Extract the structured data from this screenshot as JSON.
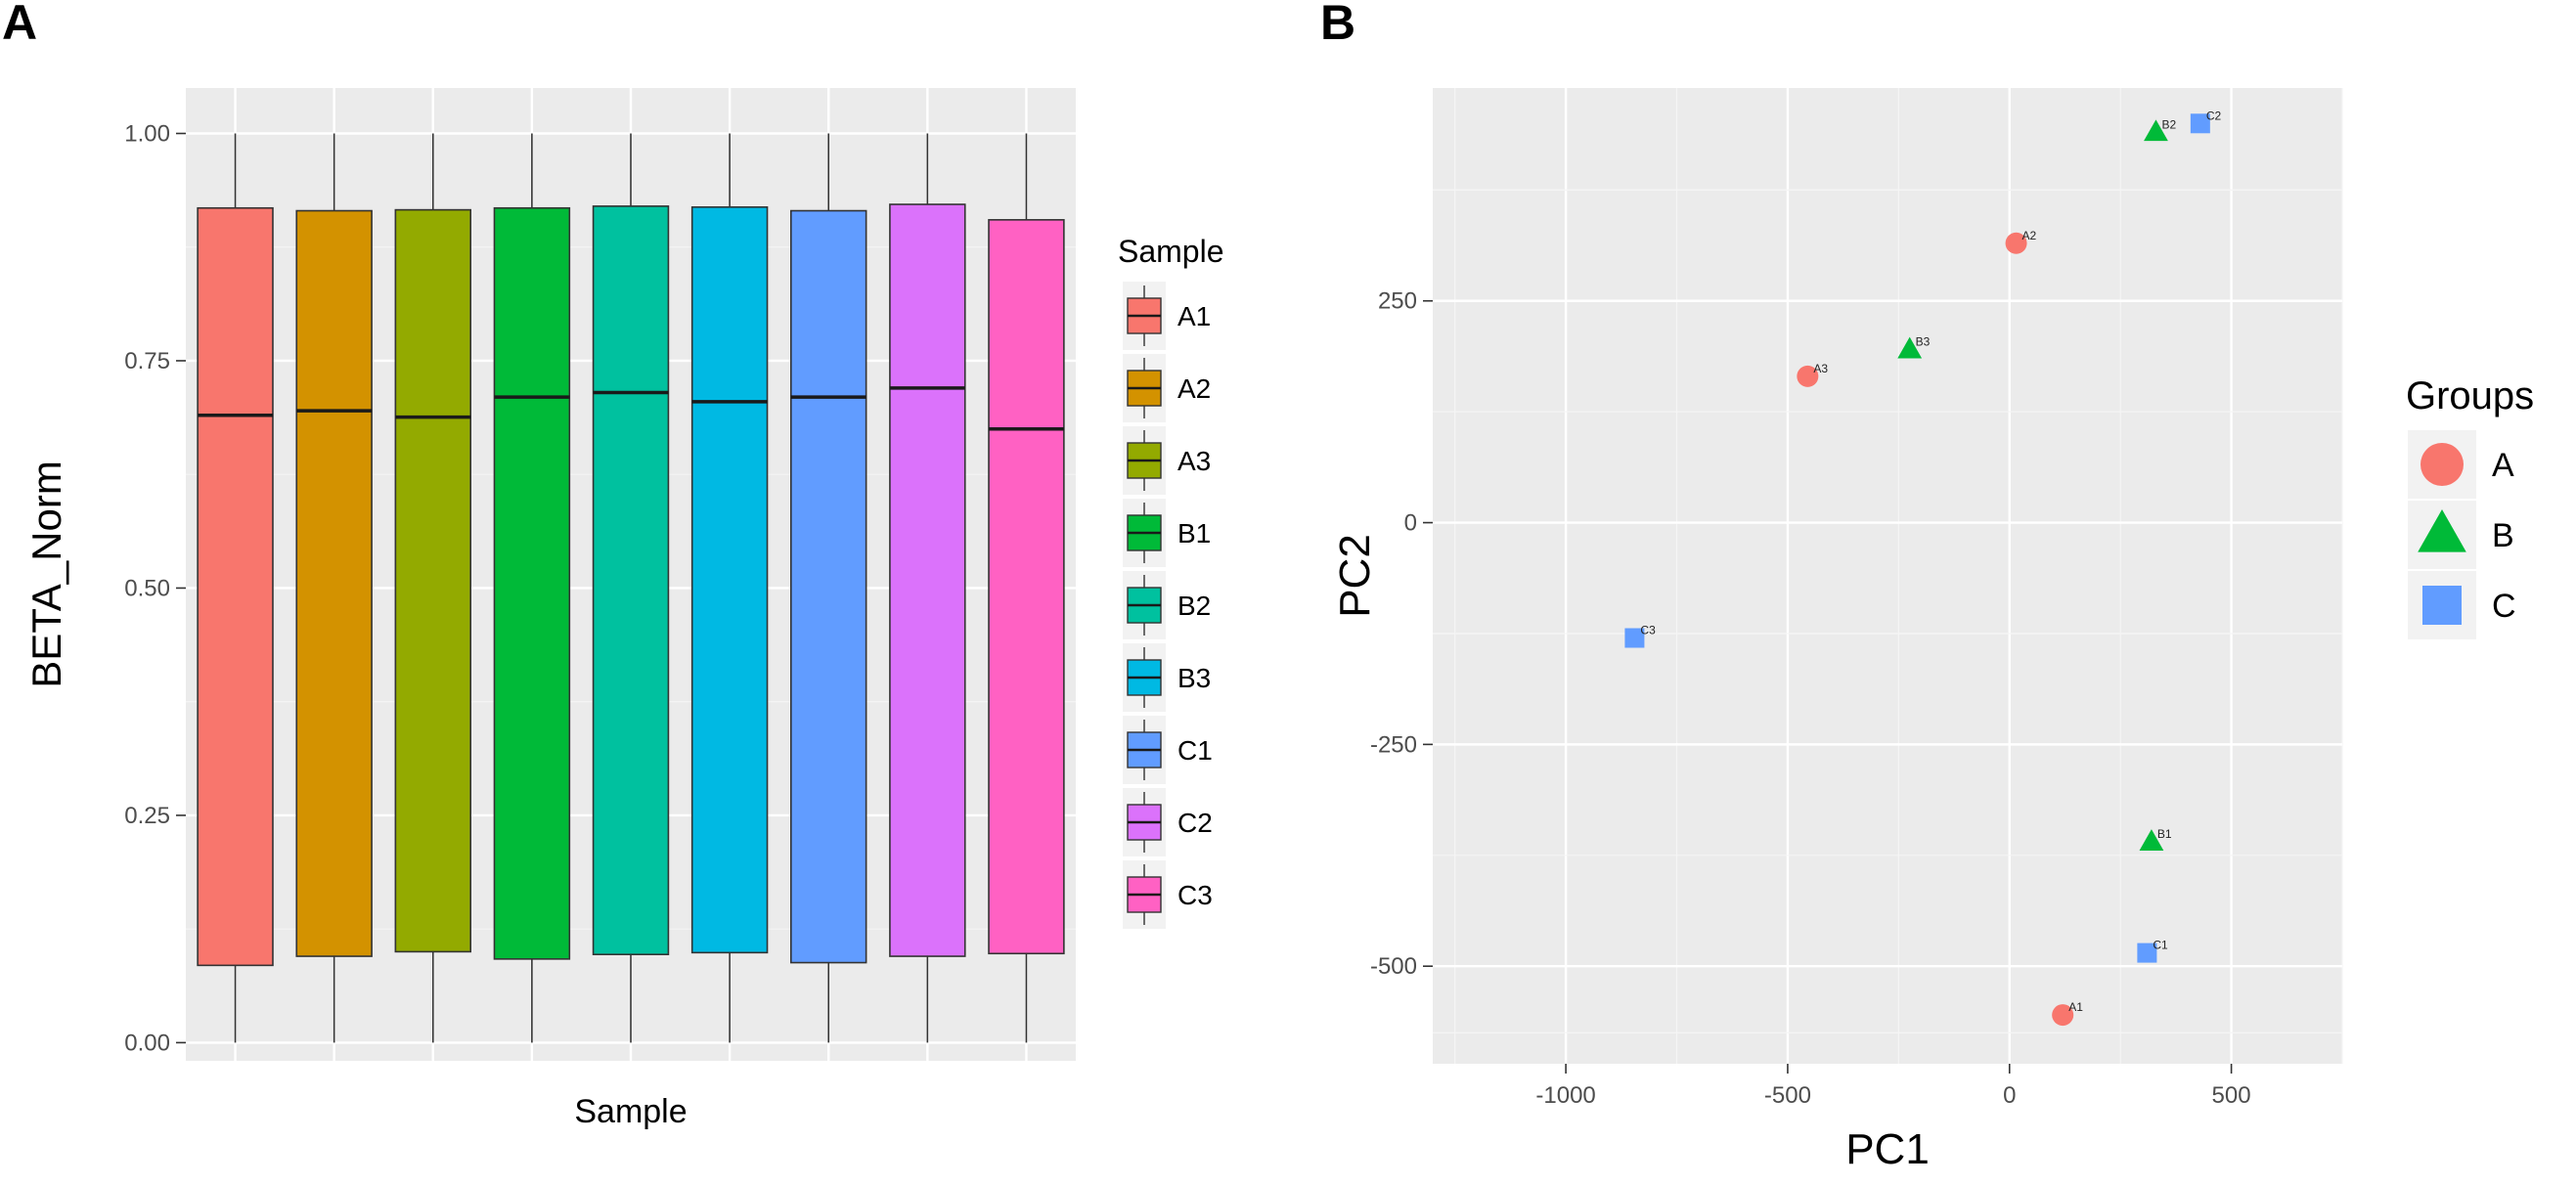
{
  "panels": {
    "a_label": "A",
    "b_label": "B"
  },
  "chart_data": [
    {
      "type": "box",
      "title": "",
      "xlabel": "Sample",
      "ylabel": "BETA_Norm",
      "ylim": [
        -0.02,
        1.05
      ],
      "yticks": [
        0.0,
        0.25,
        0.5,
        0.75,
        1.0
      ],
      "ytick_labels": [
        "0.00",
        "0.25",
        "0.50",
        "0.75",
        "1.00"
      ],
      "legend_title": "Sample",
      "legend_position": "right",
      "boxes": [
        {
          "name": "A1",
          "color": "#F8766D",
          "min": 0.0,
          "q1": 0.085,
          "median": 0.69,
          "q3": 0.918,
          "max": 1.0
        },
        {
          "name": "A2",
          "color": "#D39200",
          "min": 0.0,
          "q1": 0.095,
          "median": 0.695,
          "q3": 0.915,
          "max": 1.0
        },
        {
          "name": "A3",
          "color": "#93AA00",
          "min": 0.0,
          "q1": 0.1,
          "median": 0.688,
          "q3": 0.916,
          "max": 1.0
        },
        {
          "name": "B1",
          "color": "#00BA38",
          "min": 0.0,
          "q1": 0.092,
          "median": 0.71,
          "q3": 0.918,
          "max": 1.0
        },
        {
          "name": "B2",
          "color": "#00C19F",
          "min": 0.0,
          "q1": 0.097,
          "median": 0.715,
          "q3": 0.92,
          "max": 1.0
        },
        {
          "name": "B3",
          "color": "#00B9E3",
          "min": 0.0,
          "q1": 0.099,
          "median": 0.705,
          "q3": 0.919,
          "max": 1.0
        },
        {
          "name": "C1",
          "color": "#619CFF",
          "min": 0.0,
          "q1": 0.088,
          "median": 0.71,
          "q3": 0.915,
          "max": 1.0
        },
        {
          "name": "C2",
          "color": "#DB72FB",
          "min": 0.0,
          "q1": 0.095,
          "median": 0.72,
          "q3": 0.922,
          "max": 1.0
        },
        {
          "name": "C3",
          "color": "#FF61C3",
          "min": 0.0,
          "q1": 0.098,
          "median": 0.675,
          "q3": 0.905,
          "max": 1.0
        }
      ]
    },
    {
      "type": "scatter",
      "title": "",
      "xlabel": "PC1",
      "ylabel": "PC2",
      "xlim": [
        -1300,
        750
      ],
      "ylim": [
        -610,
        490
      ],
      "xticks": [
        -1000,
        -500,
        0,
        500
      ],
      "xtick_labels": [
        "-1000",
        "-500",
        "0",
        "500"
      ],
      "yticks": [
        -500,
        -250,
        0,
        250
      ],
      "ytick_labels": [
        "-500",
        "-250",
        "0",
        "250"
      ],
      "legend_title": "Groups",
      "legend_position": "right",
      "groups": [
        {
          "name": "A",
          "shape": "circle",
          "color": "#F8766D"
        },
        {
          "name": "B",
          "shape": "triangle",
          "color": "#00BA38"
        },
        {
          "name": "C",
          "shape": "square",
          "color": "#619CFF"
        }
      ],
      "points": [
        {
          "label": "A1",
          "group": "A",
          "x": 120,
          "y": -555
        },
        {
          "label": "A2",
          "group": "A",
          "x": 15,
          "y": 315
        },
        {
          "label": "A3",
          "group": "A",
          "x": -455,
          "y": 165
        },
        {
          "label": "B1",
          "group": "B",
          "x": 320,
          "y": -360
        },
        {
          "label": "B2",
          "group": "B",
          "x": 330,
          "y": 440
        },
        {
          "label": "B3",
          "group": "B",
          "x": -225,
          "y": 195
        },
        {
          "label": "C1",
          "group": "C",
          "x": 310,
          "y": -485
        },
        {
          "label": "C2",
          "group": "C",
          "x": 430,
          "y": 450
        },
        {
          "label": "C3",
          "group": "C",
          "x": -845,
          "y": -130
        }
      ]
    }
  ]
}
